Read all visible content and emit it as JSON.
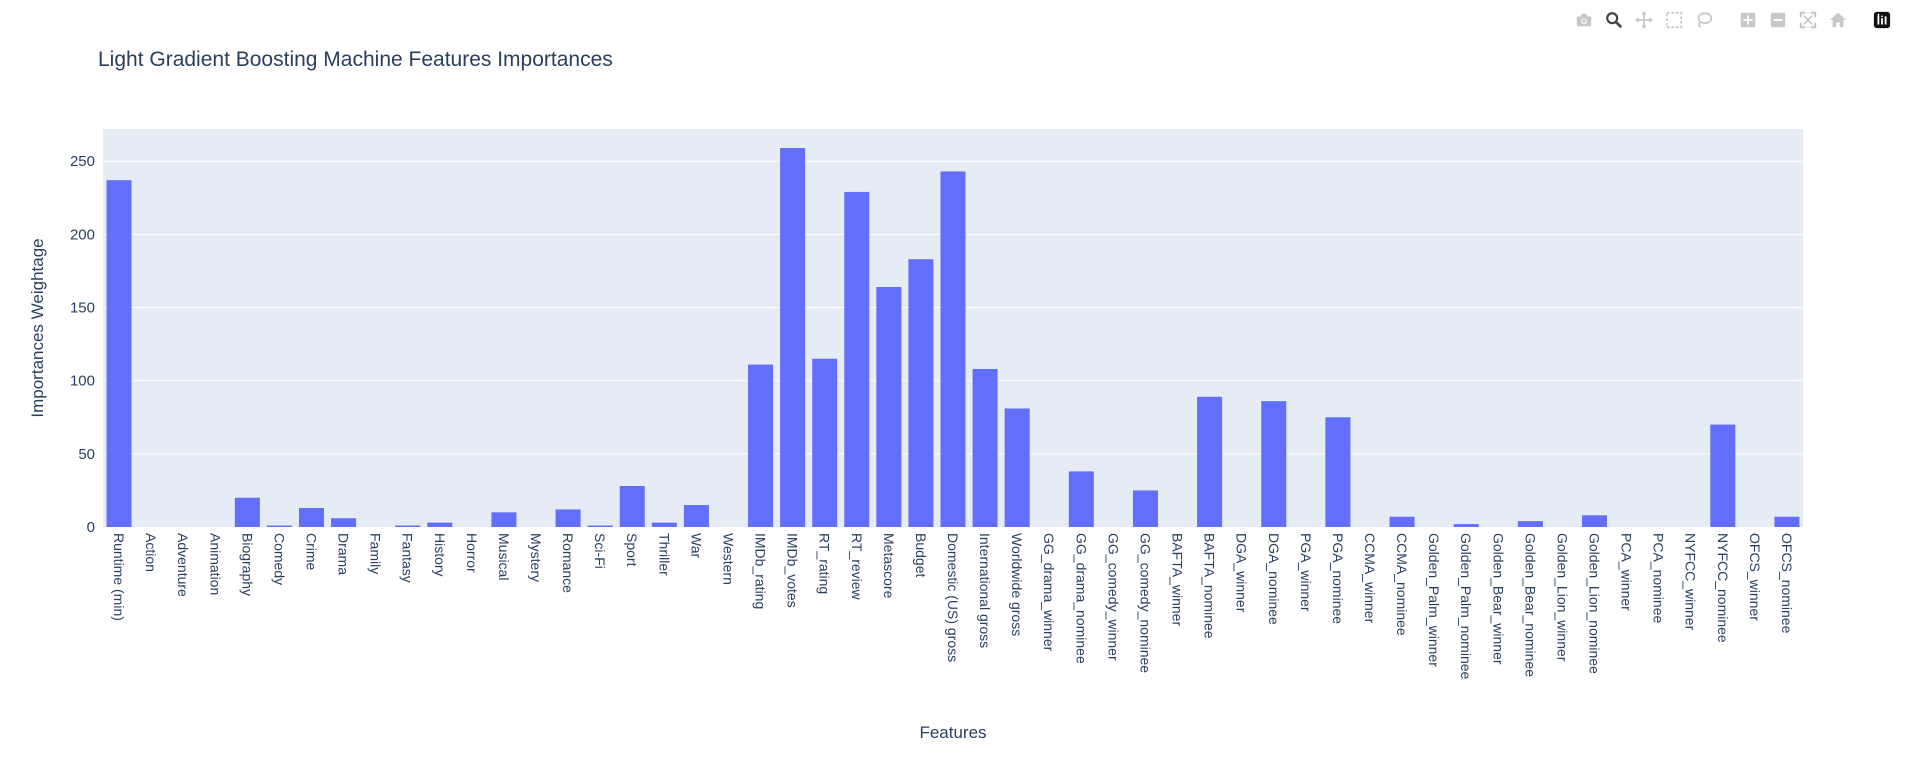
{
  "modebar": {
    "buttons": [
      {
        "icon": "camera-icon",
        "title": "Download plot as a png"
      },
      {
        "icon": "zoom-icon",
        "title": "Zoom"
      },
      {
        "icon": "pan-icon",
        "title": "Pan"
      },
      {
        "icon": "box-select-icon",
        "title": "Box Select"
      },
      {
        "icon": "lasso-select-icon",
        "title": "Lasso Select"
      },
      {
        "icon": "zoom-in-icon",
        "title": "Zoom in"
      },
      {
        "icon": "zoom-out-icon",
        "title": "Zoom out"
      },
      {
        "icon": "autoscale-icon",
        "title": "Autoscale"
      },
      {
        "icon": "reset-axes-icon",
        "title": "Reset axes"
      },
      {
        "icon": "plotly-logo-icon",
        "title": "Produced with Plotly"
      }
    ]
  },
  "chart_data": {
    "type": "bar",
    "title": "Light Gradient Boosting Machine Features Importances",
    "xlabel": "Features",
    "ylabel": "Importances Weightage",
    "ylim": [
      0,
      272
    ],
    "yticks": [
      0,
      50,
      100,
      150,
      200,
      250
    ],
    "grid": true,
    "colors": {
      "bar": "#636efa",
      "plot_bg": "#e5ecf6",
      "grid": "#ffffff",
      "text": "#2a3f5f"
    },
    "categories": [
      "Runtime (min)",
      "Action",
      "Adventure",
      "Animation",
      "Biography",
      "Comedy",
      "Crime",
      "Drama",
      "Family",
      "Fantasy",
      "History",
      "Horror",
      "Musical",
      "Mystery",
      "Romance",
      "Sci-Fi",
      "Sport",
      "Thriller",
      "War",
      "Western",
      "IMDb_rating",
      "IMDb_votes",
      "RT_rating",
      "RT_review",
      "Metascore",
      "Budget",
      "Domestic (US) gross",
      "International gross",
      "Worldwide gross",
      "GG_drama_winner",
      "GG_drama_nominee",
      "GG_comedy_winner",
      "GG_comedy_nominee",
      "BAFTA_winner",
      "BAFTA_nominee",
      "DGA_winner",
      "DGA_nominee",
      "PGA_winner",
      "PGA_nominee",
      "CCMA_winner",
      "CCMA_nominee",
      "Golden_Palm_winner",
      "Golden_Palm_nominee",
      "Golden_Bear_winner",
      "Golden_Bear_nominee",
      "Golden_Lion_winner",
      "Golden_Lion_nominee",
      "PCA_winner",
      "PCA_nominee",
      "NYFCC_winner",
      "NYFCC_nominee",
      "OFCS_winner",
      "OFCS_nominee"
    ],
    "values": [
      237,
      0,
      0,
      0,
      20,
      1,
      13,
      6,
      0,
      1,
      3,
      0,
      10,
      0,
      12,
      1,
      28,
      3,
      15,
      0,
      111,
      259,
      115,
      229,
      164,
      183,
      243,
      108,
      81,
      0,
      38,
      0,
      25,
      0,
      89,
      0,
      86,
      0,
      75,
      0,
      7,
      0,
      2,
      0,
      4,
      0,
      8,
      0,
      0,
      0,
      70,
      0,
      7
    ]
  }
}
